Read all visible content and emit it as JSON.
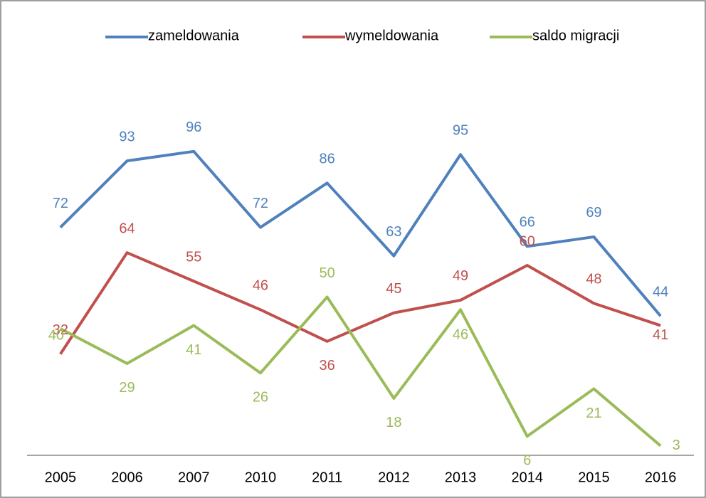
{
  "chart_data": {
    "type": "line",
    "categories": [
      "2005",
      "2006",
      "2007",
      "2010",
      "2011",
      "2012",
      "2013",
      "2014",
      "2015",
      "2016"
    ],
    "series": [
      {
        "name": "zameldowania",
        "color": "#4f81bd",
        "values": [
          72,
          93,
          96,
          72,
          86,
          63,
          95,
          66,
          69,
          44
        ]
      },
      {
        "name": "wymeldowania",
        "color": "#c0504d",
        "values": [
          32,
          64,
          55,
          46,
          36,
          45,
          49,
          60,
          48,
          41
        ]
      },
      {
        "name": "saldo migracji",
        "color": "#9bbb59",
        "values": [
          40,
          29,
          41,
          26,
          50,
          18,
          46,
          6,
          21,
          3
        ]
      }
    ],
    "ylim": [
      0,
      120
    ],
    "legend": "top"
  }
}
